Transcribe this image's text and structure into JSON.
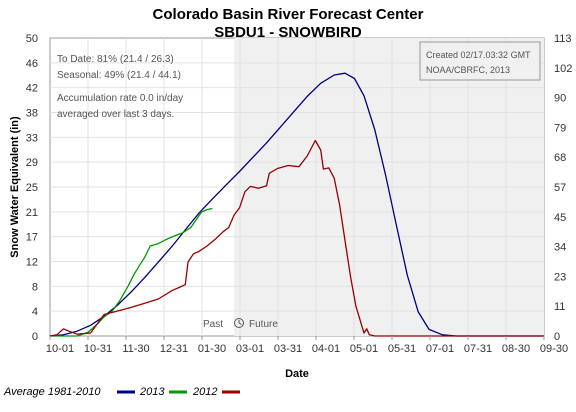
{
  "chart_data": {
    "type": "line",
    "title": "Colorado Basin River Forecast Center",
    "subtitle": "SBDU1 - SNOWBIRD",
    "xlabel": "Date",
    "ylabel": "Snow Water Equivalent (in)",
    "ylim": [
      0,
      50
    ],
    "ylim_right": [
      0,
      113
    ],
    "y_ticks": [
      "0",
      "4",
      "8",
      "12",
      "17",
      "21",
      "25",
      "29",
      "33",
      "38",
      "42",
      "46",
      "50"
    ],
    "y_ticks_right": [
      "0",
      "11",
      "23",
      "34",
      "45",
      "57",
      "68",
      "79",
      "90",
      "102",
      "113"
    ],
    "x_tick_labels": [
      "10-01",
      "10-31",
      "11-30",
      "12-31",
      "01-30",
      "03-01",
      "03-31",
      "04-01",
      "05-01",
      "05-31",
      "07-01",
      "07-31",
      "08-30",
      "09-30"
    ],
    "x_range_days": [
      0,
      365
    ],
    "future_start_day": 136,
    "past_label": "Past",
    "future_label": "Future",
    "grid": true,
    "notes_left": [
      "To Date: 81% (21.4 / 26.3)",
      "Seasonal: 49% (21.4 / 44.1)",
      "Accumulation rate 0.0 in/day",
      "averaged over last 3 days."
    ],
    "notes_right": [
      "Created 02/17.03:32 GMT",
      "NOAA/CBRFC, 2013"
    ],
    "legend": "bottom-left",
    "legend_labels": [
      "Average 1981-2010",
      "2013",
      "2012"
    ],
    "series": [
      {
        "name": "Average 1981-2010",
        "color": "#000080",
        "points": [
          [
            0,
            0
          ],
          [
            10,
            0.2
          ],
          [
            20,
            0.8
          ],
          [
            30,
            1.8
          ],
          [
            40,
            3.3
          ],
          [
            50,
            5.2
          ],
          [
            60,
            7.4
          ],
          [
            70,
            9.8
          ],
          [
            80,
            12.4
          ],
          [
            90,
            15.0
          ],
          [
            100,
            17.8
          ],
          [
            110,
            20.6
          ],
          [
            120,
            23.0
          ],
          [
            130,
            25.3
          ],
          [
            140,
            27.6
          ],
          [
            150,
            30.0
          ],
          [
            160,
            32.4
          ],
          [
            170,
            35.0
          ],
          [
            180,
            37.6
          ],
          [
            190,
            40.2
          ],
          [
            200,
            42.4
          ],
          [
            210,
            43.8
          ],
          [
            218,
            44.1
          ],
          [
            225,
            43.2
          ],
          [
            232,
            40.3
          ],
          [
            240,
            34.6
          ],
          [
            248,
            27.0
          ],
          [
            256,
            18.5
          ],
          [
            264,
            10.2
          ],
          [
            272,
            4.1
          ],
          [
            280,
            1.1
          ],
          [
            290,
            0.2
          ],
          [
            300,
            0.0
          ],
          [
            365,
            0.0
          ]
        ]
      },
      {
        "name": "2013",
        "color": "#009900",
        "points": [
          [
            0,
            0
          ],
          [
            20,
            0
          ],
          [
            28,
            0.6
          ],
          [
            34,
            1.8
          ],
          [
            40,
            3.2
          ],
          [
            46,
            4.2
          ],
          [
            52,
            6.1
          ],
          [
            58,
            8.5
          ],
          [
            62,
            10.3
          ],
          [
            66,
            11.8
          ],
          [
            70,
            13.2
          ],
          [
            74,
            15.1
          ],
          [
            80,
            15.5
          ],
          [
            86,
            16.2
          ],
          [
            92,
            16.8
          ],
          [
            98,
            17.3
          ],
          [
            104,
            18.2
          ],
          [
            108,
            19.5
          ],
          [
            112,
            20.8
          ],
          [
            116,
            21.2
          ],
          [
            120,
            21.4
          ]
        ]
      },
      {
        "name": "2012",
        "color": "#990000",
        "points": [
          [
            0,
            0
          ],
          [
            5,
            0.2
          ],
          [
            10,
            1.2
          ],
          [
            14,
            0.8
          ],
          [
            20,
            0.3
          ],
          [
            30,
            0.5
          ],
          [
            40,
            3.6
          ],
          [
            50,
            4.2
          ],
          [
            60,
            4.8
          ],
          [
            70,
            5.5
          ],
          [
            80,
            6.2
          ],
          [
            90,
            7.6
          ],
          [
            96,
            8.2
          ],
          [
            100,
            8.6
          ],
          [
            102,
            12.4
          ],
          [
            106,
            13.8
          ],
          [
            110,
            14.2
          ],
          [
            116,
            15.1
          ],
          [
            122,
            16.2
          ],
          [
            128,
            17.5
          ],
          [
            132,
            18.2
          ],
          [
            136,
            20.3
          ],
          [
            140,
            21.5
          ],
          [
            144,
            24.2
          ],
          [
            148,
            25.1
          ],
          [
            154,
            24.8
          ],
          [
            160,
            25.2
          ],
          [
            162,
            27.3
          ],
          [
            168,
            28.1
          ],
          [
            176,
            28.6
          ],
          [
            184,
            28.4
          ],
          [
            190,
            30.2
          ],
          [
            196,
            32.8
          ],
          [
            200,
            31.2
          ],
          [
            202,
            28.0
          ],
          [
            206,
            28.2
          ],
          [
            210,
            26.5
          ],
          [
            214,
            22.0
          ],
          [
            218,
            16.0
          ],
          [
            222,
            10.0
          ],
          [
            226,
            5.0
          ],
          [
            230,
            2.0
          ],
          [
            232,
            0.5
          ],
          [
            234,
            1.2
          ],
          [
            236,
            0.2
          ],
          [
            240,
            0.0
          ],
          [
            365,
            0.0
          ]
        ]
      }
    ]
  }
}
